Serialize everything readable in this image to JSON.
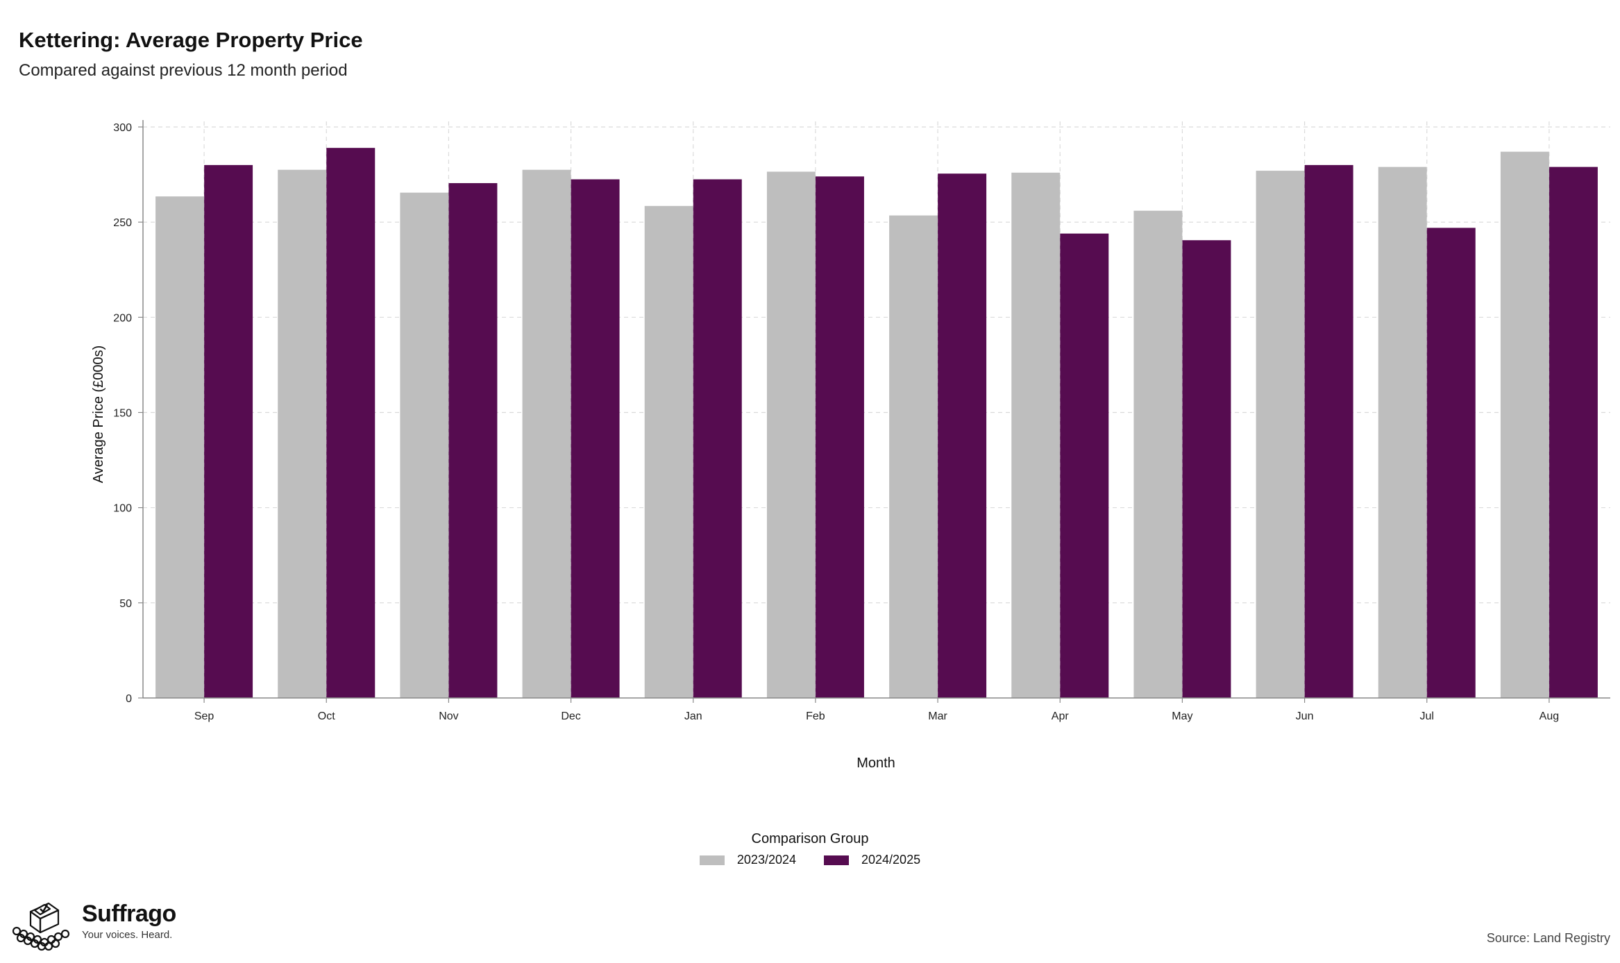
{
  "header": {
    "title": "Kettering: Average Property Price",
    "subtitle": "Compared against previous 12 month period"
  },
  "legend": {
    "title": "Comparison Group",
    "items": [
      {
        "label": "2023/2024",
        "color": "#bebebe"
      },
      {
        "label": "2024/2025",
        "color": "#560c50"
      }
    ]
  },
  "branding": {
    "name": "Suffrago",
    "tagline": "Your voices. Heard.",
    "logo_icon": "ballot-box-icon"
  },
  "source": "Source: Land Registry",
  "chart_data": {
    "type": "bar",
    "categories": [
      "Sep",
      "Oct",
      "Nov",
      "Dec",
      "Jan",
      "Feb",
      "Mar",
      "Apr",
      "May",
      "Jun",
      "Jul",
      "Aug"
    ],
    "series": [
      {
        "name": "2023/2024",
        "color": "#bebebe",
        "values": [
          263.5,
          277.5,
          265.5,
          277.5,
          258.5,
          276.5,
          253.5,
          276,
          256,
          277,
          279,
          287
        ]
      },
      {
        "name": "2024/2025",
        "color": "#560c50",
        "values": [
          280,
          289,
          270.5,
          272.5,
          272.5,
          274,
          275.5,
          244,
          240.5,
          280,
          247,
          279
        ]
      }
    ],
    "xlabel": "Month",
    "ylabel": "Average Price (£000s)",
    "ylim": [
      0,
      300
    ],
    "yticks": [
      0,
      50,
      100,
      150,
      200,
      250,
      300
    ],
    "grid": true,
    "legend_position": "bottom"
  }
}
